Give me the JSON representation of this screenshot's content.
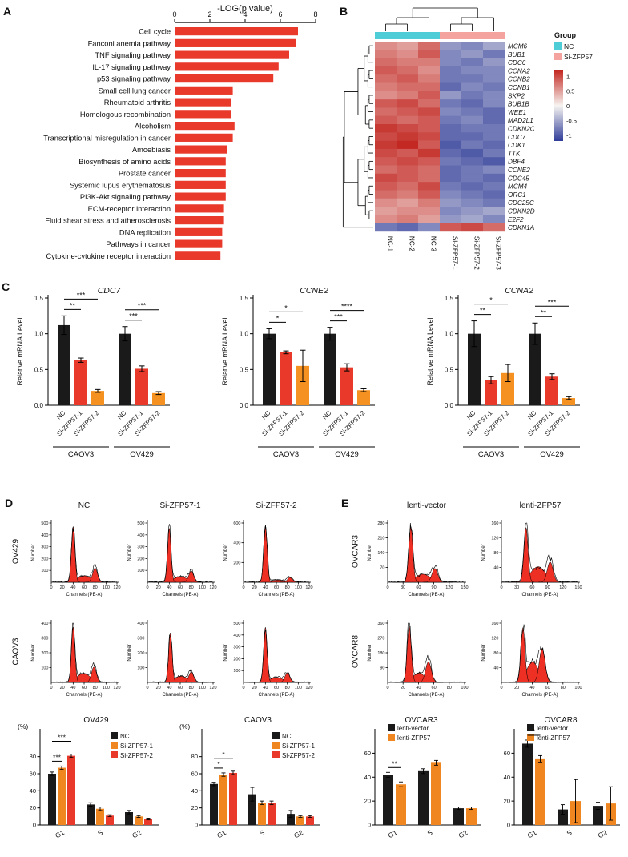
{
  "colors": {
    "bar_red": "#e8392b",
    "flow_fill": "#ee2f24",
    "heat_cyan": "#4ecdd6",
    "heat_pink": "#f4a39e"
  },
  "panel_letters": {
    "A": "A",
    "B": "B",
    "C": "C",
    "D": "D",
    "E": "E"
  },
  "flow_axis_labels": {
    "ylabel": "Number",
    "xlabel": "Channels (PE-A)"
  },
  "panelA": {
    "title": "-LOG(p value)",
    "xlim": [
      0,
      8
    ],
    "xticks": [
      0,
      2,
      4,
      6,
      8
    ],
    "categories": [
      "Cell cycle",
      "Fanconi anemia pathway",
      "TNF signaling pathway",
      "IL-17 signaling pathway",
      "p53 signaling pathway",
      "Small cell lung cancer",
      "Rheumatoid arthritis",
      "Homologous recombination",
      "Alcoholism",
      "Transcriptional misregulation in cancer",
      "Amoebiasis",
      "Biosynthesis of amino acids",
      "Prostate cancer",
      "Systemic lupus erythematosus",
      "PI3K-Akt signaling pathway",
      "ECM-receptor interaction",
      "Fluid shear stress and atherosclerosis",
      "DNA replication",
      "Pathways in cancer",
      "Cytokine-cytokine receptor interaction"
    ],
    "values": [
      7.0,
      6.9,
      6.5,
      5.9,
      5.6,
      3.3,
      3.2,
      3.2,
      3.4,
      3.3,
      3.0,
      2.9,
      2.9,
      2.9,
      2.9,
      2.8,
      2.8,
      2.7,
      2.7,
      2.6
    ]
  },
  "panelB": {
    "genes": [
      "MCM6",
      "BUB1",
      "CDC6",
      "CCNA2",
      "CCNB2",
      "CCNB1",
      "SKP2",
      "BUB1B",
      "WEE1",
      "MAD2L1",
      "CDKN2C",
      "CDC7",
      "CDK1",
      "TTK",
      "DBF4",
      "CCNE2",
      "CDC45",
      "MCM4",
      "ORC1",
      "CDC25C",
      "CDKN2D",
      "E2F2",
      "CDKN1A"
    ],
    "columns": [
      "NC-1",
      "NC-2",
      "NC-3",
      "Si-ZFP57-1",
      "Si-ZFP57-2",
      "Si-ZFP57-3"
    ],
    "group_title": "Group",
    "groups": [
      {
        "label": "NC",
        "color": "#4ecdd6",
        "span": 3
      },
      {
        "label": "Si-ZFP57",
        "color": "#f4a39e",
        "span": 3
      }
    ],
    "colorbar_ticks": [
      1,
      0.5,
      0,
      -0.5,
      -1
    ],
    "values": [
      [
        0.6,
        0.5,
        0.8,
        -0.6,
        -0.7,
        -0.5
      ],
      [
        0.7,
        0.6,
        0.9,
        -0.7,
        -0.6,
        -0.8
      ],
      [
        0.8,
        0.7,
        0.7,
        -0.7,
        -0.8,
        -0.6
      ],
      [
        0.9,
        0.8,
        0.6,
        -0.8,
        -0.7,
        -0.7
      ],
      [
        0.8,
        0.9,
        0.7,
        -0.8,
        -0.8,
        -0.7
      ],
      [
        0.7,
        0.8,
        0.8,
        -0.9,
        -0.7,
        -0.8
      ],
      [
        0.6,
        0.7,
        0.9,
        -0.6,
        -0.8,
        -0.7
      ],
      [
        0.9,
        1.0,
        0.8,
        -0.8,
        -0.9,
        -0.7
      ],
      [
        0.8,
        0.9,
        1.0,
        -0.7,
        -0.8,
        -0.9
      ],
      [
        0.9,
        0.8,
        0.9,
        -0.8,
        -0.7,
        -0.9
      ],
      [
        1.1,
        1.0,
        0.9,
        -0.9,
        -0.8,
        -0.8
      ],
      [
        1.0,
        1.1,
        1.0,
        -0.9,
        -0.9,
        -0.8
      ],
      [
        1.1,
        1.2,
        0.9,
        -1.0,
        -0.8,
        -0.9
      ],
      [
        1.0,
        0.9,
        1.1,
        -0.9,
        -1.0,
        -0.8
      ],
      [
        0.9,
        1.0,
        0.9,
        -0.8,
        -0.9,
        -1.0
      ],
      [
        0.8,
        0.9,
        0.8,
        -0.9,
        -0.8,
        -0.7
      ],
      [
        1.0,
        0.9,
        0.8,
        -0.9,
        -0.8,
        -0.9
      ],
      [
        0.9,
        0.8,
        1.0,
        -0.8,
        -0.9,
        -0.8
      ],
      [
        0.8,
        0.7,
        0.9,
        -0.7,
        -0.8,
        -0.9
      ],
      [
        0.6,
        0.5,
        0.7,
        -0.6,
        -0.7,
        -0.8
      ],
      [
        0.5,
        0.6,
        0.6,
        -0.7,
        -0.6,
        -0.5
      ],
      [
        0.6,
        0.7,
        0.5,
        -0.6,
        -0.5,
        -0.7
      ],
      [
        -0.8,
        -0.9,
        -0.7,
        0.9,
        1.0,
        0.8
      ]
    ]
  },
  "panelC": {
    "ylabel": "Relative mRNA Level",
    "ylim": [
      0,
      1.5
    ],
    "yticks": [
      0,
      0.5,
      1,
      1.5
    ],
    "series": [
      "NC",
      "Si-ZFP57-1",
      "Si-ZFP57-2"
    ],
    "series_colors": [
      "#1a1a1a",
      "#e8392b",
      "#f59120"
    ],
    "group_labels": [
      "CAOV3",
      "OV429"
    ],
    "charts": [
      {
        "title": "CDC7",
        "values": [
          [
            1.12,
            0.63,
            0.2
          ],
          [
            1.0,
            0.51,
            0.17
          ]
        ],
        "errors": [
          [
            0.13,
            0.03,
            0.02
          ],
          [
            0.1,
            0.04,
            0.02
          ]
        ],
        "sig": [
          {
            "g": 0,
            "a": 0,
            "b": 1,
            "label": "**"
          },
          {
            "g": 0,
            "a": 0,
            "b": 2,
            "label": "***"
          },
          {
            "g": 1,
            "a": 0,
            "b": 1,
            "label": "***"
          },
          {
            "g": 1,
            "a": 0,
            "b": 2,
            "label": "***"
          }
        ]
      },
      {
        "title": "CCNE2",
        "values": [
          [
            1.0,
            0.74,
            0.55
          ],
          [
            1.0,
            0.53,
            0.21
          ]
        ],
        "errors": [
          [
            0.07,
            0.02,
            0.22
          ],
          [
            0.09,
            0.05,
            0.02
          ]
        ],
        "sig": [
          {
            "g": 0,
            "a": 0,
            "b": 1,
            "label": "*"
          },
          {
            "g": 0,
            "a": 0,
            "b": 2,
            "label": "*"
          },
          {
            "g": 1,
            "a": 0,
            "b": 1,
            "label": "***"
          },
          {
            "g": 1,
            "a": 0,
            "b": 2,
            "label": "****"
          }
        ]
      },
      {
        "title": "CCNA2",
        "values": [
          [
            1.0,
            0.35,
            0.45
          ],
          [
            1.0,
            0.4,
            0.1
          ]
        ],
        "errors": [
          [
            0.18,
            0.05,
            0.12
          ],
          [
            0.15,
            0.04,
            0.02
          ]
        ],
        "sig": [
          {
            "g": 0,
            "a": 0,
            "b": 1,
            "label": "**"
          },
          {
            "g": 0,
            "a": 0,
            "b": 2,
            "label": "*"
          },
          {
            "g": 1,
            "a": 0,
            "b": 1,
            "label": "**"
          },
          {
            "g": 1,
            "a": 0,
            "b": 2,
            "label": "***"
          }
        ]
      }
    ]
  },
  "panelD": {
    "col_headers": [
      "NC",
      "Si-ZFP57-1",
      "Si-ZFP57-2"
    ],
    "row_labels": [
      "OV429",
      "CAOV3"
    ],
    "flows": [
      {
        "ymax": 500,
        "yticks": [
          100,
          200,
          300,
          400,
          500
        ],
        "xmax": 120,
        "xticks": [
          0,
          20,
          40,
          60,
          80,
          100,
          120
        ],
        "g1x": 40,
        "g1h": 470,
        "g2x": 80,
        "g2h": 120,
        "sh": 55
      },
      {
        "ymax": 500,
        "yticks": [
          100,
          200,
          300,
          400,
          500
        ],
        "xmax": 120,
        "xticks": [
          0,
          20,
          40,
          60,
          80,
          100,
          120
        ],
        "g1x": 40,
        "g1h": 455,
        "g2x": 80,
        "g2h": 95,
        "sh": 48
      },
      {
        "ymax": 600,
        "yticks": [
          200,
          400,
          600
        ],
        "xmax": 120,
        "xticks": [
          0,
          20,
          40,
          60,
          80,
          100,
          120
        ],
        "g1x": 40,
        "g1h": 575,
        "g2x": 85,
        "g2h": 50,
        "sh": 22
      },
      {
        "ymax": 400,
        "yticks": [
          100,
          200,
          300,
          400
        ],
        "xmax": 120,
        "xticks": [
          0,
          20,
          40,
          60,
          80,
          100,
          120
        ],
        "g1x": 40,
        "g1h": 375,
        "g2x": 78,
        "g2h": 105,
        "sh": 62
      },
      {
        "ymax": 400,
        "yticks": [
          100,
          200,
          300,
          400
        ],
        "xmax": 120,
        "xticks": [
          0,
          20,
          40,
          60,
          80,
          100,
          120
        ],
        "g1x": 42,
        "g1h": 335,
        "g2x": 80,
        "g2h": 70,
        "sh": 42
      },
      {
        "ymax": 500,
        "yticks": [
          100,
          200,
          300,
          400,
          500
        ],
        "xmax": 120,
        "xticks": [
          0,
          20,
          40,
          60,
          80,
          100,
          120
        ],
        "g1x": 40,
        "g1h": 465,
        "g2x": 80,
        "g2h": 80,
        "sh": 42
      }
    ],
    "bars": [
      {
        "title": "OV429",
        "pct_label": "(%)",
        "ylim": [
          0,
          105
        ],
        "yticks": [
          0,
          20,
          40,
          60,
          80
        ],
        "categories": [
          "G1",
          "S",
          "G2"
        ],
        "series": [
          {
            "label": "NC",
            "color": "#1a1a1a"
          },
          {
            "label": "Si-ZFP57-1",
            "color": "#f0861f"
          },
          {
            "label": "Si-ZFP57-2",
            "color": "#e8392b"
          }
        ],
        "values": [
          [
            60,
            67,
            81
          ],
          [
            24,
            19,
            11
          ],
          [
            15,
            10,
            7
          ]
        ],
        "errors": [
          [
            2,
            2,
            2
          ],
          [
            2,
            2,
            1
          ],
          [
            2,
            1,
            1
          ]
        ],
        "sig": [
          {
            "g": 0,
            "a": 0,
            "b": 1,
            "label": "***"
          },
          {
            "g": 0,
            "a": 0,
            "b": 2,
            "label": "***"
          }
        ]
      },
      {
        "title": "CAOV3",
        "pct_label": "(%)",
        "ylim": [
          0,
          105
        ],
        "yticks": [
          0,
          20,
          40,
          60,
          80
        ],
        "categories": [
          "G1",
          "S",
          "G2"
        ],
        "series": [
          {
            "label": "NC",
            "color": "#1a1a1a"
          },
          {
            "label": "Si-ZFP57-1",
            "color": "#f0861f"
          },
          {
            "label": "Si-ZFP57-2",
            "color": "#e8392b"
          }
        ],
        "values": [
          [
            48,
            59,
            61
          ],
          [
            36,
            26,
            26
          ],
          [
            13,
            10,
            10
          ]
        ],
        "errors": [
          [
            2,
            2,
            2
          ],
          [
            8,
            2,
            2
          ],
          [
            4,
            1,
            1
          ]
        ],
        "sig": [
          {
            "g": 0,
            "a": 0,
            "b": 1,
            "label": "*"
          },
          {
            "g": 0,
            "a": 0,
            "b": 2,
            "label": "*"
          }
        ]
      }
    ]
  },
  "panelE": {
    "col_headers": [
      "lenti-vector",
      "lenti-ZFP57"
    ],
    "row_labels": [
      "OVCAR3",
      "OVCAR8"
    ],
    "flows": [
      {
        "ymax": 280,
        "yticks": [
          70,
          140,
          210,
          280
        ],
        "xmax": 150,
        "xticks": [
          0,
          30,
          60,
          90,
          120,
          150
        ],
        "g1x": 45,
        "g1h": 265,
        "g2x": 92,
        "g2h": 65,
        "sh": 38
      },
      {
        "ymax": 160,
        "yticks": [
          40,
          80,
          120,
          160
        ],
        "xmax": 150,
        "xticks": [
          0,
          30,
          60,
          90,
          120,
          150
        ],
        "g1x": 48,
        "g1h": 148,
        "g2x": 95,
        "g2h": 55,
        "sh": 42
      },
      {
        "ymax": 360,
        "yticks": [
          90,
          180,
          270,
          360
        ],
        "xmax": 100,
        "xticks": [
          0,
          20,
          40,
          60,
          80,
          100
        ],
        "g1x": 28,
        "g1h": 345,
        "g2x": 53,
        "g2h": 125,
        "sh": 58
      },
      {
        "ymax": 160,
        "yticks": [
          40,
          80,
          120,
          160
        ],
        "xmax": 100,
        "xticks": [
          0,
          20,
          40,
          60,
          80,
          100
        ],
        "g1x": 28,
        "g1h": 148,
        "g2x": 53,
        "g2h": 92,
        "sh": 55
      }
    ],
    "bars": [
      {
        "title": "OVCAR3",
        "ylim": [
          0,
          75
        ],
        "yticks": [
          0,
          20,
          40,
          60
        ],
        "categories": [
          "G1",
          "S",
          "G2"
        ],
        "series": [
          {
            "label": "lenti-vector",
            "color": "#1a1a1a"
          },
          {
            "label": "lenti-ZFP57",
            "color": "#f0861f"
          }
        ],
        "values": [
          [
            42,
            34
          ],
          [
            45,
            52
          ],
          [
            14,
            14
          ]
        ],
        "errors": [
          [
            2,
            2
          ],
          [
            2,
            2
          ],
          [
            1,
            1
          ]
        ],
        "sig": [
          {
            "g": 0,
            "a": 0,
            "b": 1,
            "label": "**"
          }
        ]
      },
      {
        "title": "OVCAR8",
        "ylim": [
          0,
          75
        ],
        "yticks": [
          0,
          20,
          40,
          60
        ],
        "categories": [
          "G1",
          "S",
          "G2"
        ],
        "series": [
          {
            "label": "lenti-vector",
            "color": "#1a1a1a"
          },
          {
            "label": "lenti-ZFP57",
            "color": "#f0861f"
          }
        ],
        "values": [
          [
            68,
            55
          ],
          [
            13,
            20
          ],
          [
            16,
            18
          ]
        ],
        "errors": [
          [
            3,
            3
          ],
          [
            4,
            18
          ],
          [
            3,
            14
          ]
        ],
        "sig": [
          {
            "g": 0,
            "a": 0,
            "b": 1,
            "label": "*"
          }
        ]
      }
    ]
  }
}
